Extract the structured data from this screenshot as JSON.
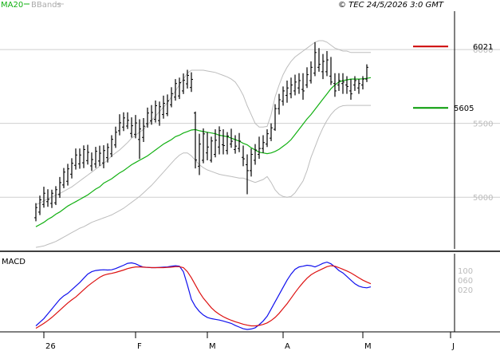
{
  "header": {
    "ma_label": "MA20",
    "bb_label": "BBands",
    "source": "© TEC 24/5/2026 3:0 GMT"
  },
  "macd_label": "MACD",
  "colors": {
    "price": "#000000",
    "ma": "#12b012",
    "bands": "#bdbdbd",
    "resistance": "#cc0000",
    "support": "#009900",
    "macd": "#1010ee",
    "signal": "#dd1111",
    "grid": "#cfcfcf",
    "axis": "#000000"
  },
  "chart_data": [
    {
      "type": "ohlc",
      "title": "",
      "y_ticks": [
        "5000",
        "5500",
        "6000"
      ],
      "ylim": [
        4650,
        6260
      ],
      "x_ticks": [
        "26",
        "F",
        "M",
        "A",
        "M",
        "J"
      ],
      "x_tick_positions": [
        2,
        25,
        43,
        62,
        82,
        104
      ],
      "x_range": [
        -9,
        105
      ],
      "levels": [
        {
          "name": "resistance",
          "value": 6021,
          "label": "6021"
        },
        {
          "name": "support",
          "value": 5605,
          "label": "5605"
        }
      ],
      "ohlc": [
        [
          4861,
          4960,
          4837,
          4930
        ],
        [
          4899,
          5011,
          4879,
          4982
        ],
        [
          4951,
          5071,
          4929,
          5027
        ],
        [
          4970,
          5054,
          4935,
          4985
        ],
        [
          4958,
          5051,
          4927,
          5027
        ],
        [
          4962,
          5075,
          4947,
          5051
        ],
        [
          5018,
          5137,
          4996,
          5099
        ],
        [
          5083,
          5198,
          5061,
          5170
        ],
        [
          5108,
          5226,
          5079,
          5192
        ],
        [
          5156,
          5264,
          5127,
          5230
        ],
        [
          5216,
          5330,
          5187,
          5286
        ],
        [
          5226,
          5330,
          5193,
          5286
        ],
        [
          5233,
          5351,
          5197,
          5323
        ],
        [
          5248,
          5355,
          5221,
          5304
        ],
        [
          5212,
          5303,
          5178,
          5255
        ],
        [
          5225,
          5341,
          5198,
          5311
        ],
        [
          5245,
          5349,
          5212,
          5298
        ],
        [
          5232,
          5352,
          5196,
          5316
        ],
        [
          5268,
          5365,
          5235,
          5337
        ],
        [
          5294,
          5420,
          5272,
          5392
        ],
        [
          5354,
          5478,
          5334,
          5440
        ],
        [
          5450,
          5562,
          5419,
          5504
        ],
        [
          5475,
          5575,
          5448,
          5537
        ],
        [
          5482,
          5575,
          5462,
          5521
        ],
        [
          5432,
          5541,
          5404,
          5484
        ],
        [
          5426,
          5557,
          5399,
          5503
        ],
        [
          5391,
          5528,
          5259,
          5462
        ],
        [
          5405,
          5536,
          5374,
          5481
        ],
        [
          5498,
          5607,
          5471,
          5570
        ],
        [
          5518,
          5624,
          5491,
          5574
        ],
        [
          5528,
          5655,
          5506,
          5620
        ],
        [
          5519,
          5648,
          5484,
          5613
        ],
        [
          5560,
          5688,
          5532,
          5636
        ],
        [
          5566,
          5696,
          5549,
          5653
        ],
        [
          5626,
          5745,
          5609,
          5702
        ],
        [
          5678,
          5800,
          5654,
          5770
        ],
        [
          5686,
          5810,
          5665,
          5776
        ],
        [
          5720,
          5838,
          5699,
          5792
        ],
        [
          5768,
          5863,
          5736,
          5825
        ],
        [
          5743,
          5846,
          5713,
          5798
        ],
        [
          5570,
          5580,
          5195,
          5252
        ],
        [
          5210,
          5430,
          5150,
          5360
        ],
        [
          5250,
          5466,
          5230,
          5429
        ],
        [
          5300,
          5440,
          5250,
          5340
        ],
        [
          5250,
          5410,
          5235,
          5381
        ],
        [
          5290,
          5460,
          5270,
          5386
        ],
        [
          5340,
          5480,
          5290,
          5451
        ],
        [
          5355,
          5460,
          5290,
          5350
        ],
        [
          5316,
          5441,
          5290,
          5414
        ],
        [
          5360,
          5464,
          5335,
          5379
        ],
        [
          5323,
          5420,
          5295,
          5346
        ],
        [
          5330,
          5435,
          5305,
          5380
        ],
        [
          5270,
          5350,
          5210,
          5260
        ],
        [
          5220,
          5290,
          5020,
          5180
        ],
        [
          5180,
          5330,
          5140,
          5290
        ],
        [
          5250,
          5360,
          5220,
          5320
        ],
        [
          5290,
          5410,
          5260,
          5330
        ],
        [
          5330,
          5420,
          5300,
          5370
        ],
        [
          5360,
          5460,
          5340,
          5430
        ],
        [
          5400,
          5500,
          5380,
          5470
        ],
        [
          5460,
          5630,
          5450,
          5600
        ],
        [
          5600,
          5700,
          5560,
          5660
        ],
        [
          5650,
          5750,
          5620,
          5720
        ],
        [
          5690,
          5790,
          5640,
          5740
        ],
        [
          5700,
          5810,
          5670,
          5760
        ],
        [
          5720,
          5830,
          5690,
          5780
        ],
        [
          5740,
          5840,
          5700,
          5790
        ],
        [
          5730,
          5840,
          5660,
          5720
        ],
        [
          5760,
          5880,
          5740,
          5830
        ],
        [
          5790,
          5920,
          5770,
          5880
        ],
        [
          5840,
          6050,
          5820,
          5980
        ],
        [
          5880,
          6010,
          5850,
          5900
        ],
        [
          5850,
          5970,
          5800,
          5920
        ],
        [
          5850,
          5990,
          5820,
          5930
        ],
        [
          5820,
          5950,
          5760,
          5780
        ],
        [
          5770,
          5840,
          5680,
          5720
        ],
        [
          5760,
          5840,
          5720,
          5790
        ],
        [
          5770,
          5840,
          5700,
          5780
        ],
        [
          5760,
          5820,
          5700,
          5750
        ],
        [
          5720,
          5800,
          5660,
          5700
        ],
        [
          5760,
          5820,
          5720,
          5790
        ],
        [
          5740,
          5800,
          5700,
          5770
        ],
        [
          5760,
          5820,
          5730,
          5800
        ],
        [
          5800,
          5900,
          5780,
          5880
        ]
      ],
      "ma20": [
        4800,
        4815,
        4830,
        4850,
        4865,
        4885,
        4900,
        4920,
        4940,
        4955,
        4970,
        4985,
        5000,
        5015,
        5035,
        5055,
        5070,
        5095,
        5110,
        5125,
        5145,
        5165,
        5180,
        5200,
        5220,
        5235,
        5250,
        5265,
        5280,
        5300,
        5320,
        5340,
        5360,
        5375,
        5390,
        5410,
        5420,
        5435,
        5445,
        5455,
        5458,
        5450,
        5445,
        5440,
        5435,
        5430,
        5420,
        5415,
        5410,
        5400,
        5390,
        5380,
        5365,
        5355,
        5335,
        5320,
        5305,
        5300,
        5295,
        5300,
        5310,
        5325,
        5345,
        5365,
        5390,
        5425,
        5460,
        5495,
        5530,
        5560,
        5595,
        5630,
        5665,
        5700,
        5735,
        5760,
        5780,
        5790,
        5795,
        5800,
        5800,
        5800,
        5802,
        5805,
        5810
      ],
      "bb_upper": [
        4950,
        4960,
        4975,
        4990,
        5000,
        5015,
        5025,
        5040,
        5055,
        5070,
        5090,
        5110,
        5130,
        5150,
        5170,
        5190,
        5210,
        5230,
        5250,
        5280,
        5300,
        5320,
        5345,
        5370,
        5400,
        5420,
        5440,
        5460,
        5490,
        5520,
        5550,
        5580,
        5610,
        5640,
        5680,
        5720,
        5760,
        5800,
        5840,
        5860,
        5860,
        5860,
        5860,
        5855,
        5850,
        5845,
        5835,
        5825,
        5815,
        5800,
        5780,
        5740,
        5690,
        5620,
        5560,
        5500,
        5475,
        5475,
        5480,
        5560,
        5680,
        5760,
        5830,
        5880,
        5920,
        5950,
        5970,
        5990,
        6010,
        6030,
        6050,
        6060,
        6060,
        6050,
        6030,
        6010,
        6000,
        5990,
        5990,
        5980,
        5980,
        5980,
        5980,
        5980,
        5980
      ],
      "bb_lower": [
        4660,
        4665,
        4670,
        4680,
        4690,
        4700,
        4715,
        4730,
        4745,
        4760,
        4775,
        4790,
        4800,
        4815,
        4830,
        4840,
        4850,
        4860,
        4870,
        4880,
        4895,
        4910,
        4925,
        4945,
        4965,
        4985,
        5005,
        5030,
        5055,
        5080,
        5110,
        5140,
        5170,
        5200,
        5230,
        5260,
        5285,
        5300,
        5300,
        5280,
        5250,
        5220,
        5200,
        5185,
        5175,
        5165,
        5155,
        5150,
        5145,
        5140,
        5135,
        5130,
        5130,
        5120,
        5110,
        5100,
        5110,
        5120,
        5140,
        5100,
        5050,
        5020,
        5005,
        5000,
        5005,
        5030,
        5070,
        5110,
        5180,
        5270,
        5340,
        5410,
        5470,
        5520,
        5560,
        5590,
        5610,
        5620,
        5622,
        5622,
        5622,
        5622,
        5622,
        5622,
        5622
      ]
    },
    {
      "type": "line",
      "title": "MACD",
      "y_ticks": [
        "100",
        "060",
        "020"
      ],
      "y_tick_values": [
        100,
        60,
        20
      ],
      "ylim": [
        -155,
        170
      ],
      "series": [
        {
          "name": "MACD",
          "values": [
            -130,
            -115,
            -100,
            -80,
            -60,
            -40,
            -20,
            -5,
            5,
            20,
            35,
            50,
            68,
            85,
            95,
            100,
            102,
            103,
            102,
            103,
            108,
            115,
            122,
            130,
            132,
            128,
            120,
            114,
            113,
            112,
            112,
            113,
            114,
            115,
            118,
            120,
            118,
            95,
            40,
            -20,
            -50,
            -70,
            -85,
            -95,
            -100,
            -103,
            -106,
            -110,
            -115,
            -120,
            -128,
            -135,
            -142,
            -145,
            -143,
            -138,
            -125,
            -110,
            -90,
            -60,
            -30,
            0,
            30,
            60,
            85,
            105,
            115,
            118,
            122,
            120,
            115,
            122,
            130,
            135,
            128,
            115,
            100,
            90,
            75,
            60,
            45,
            35,
            30,
            28,
            32
          ]
        },
        {
          "name": "Signal",
          "values": [
            -140,
            -130,
            -120,
            -108,
            -95,
            -80,
            -65,
            -50,
            -35,
            -22,
            -10,
            5,
            20,
            35,
            48,
            60,
            72,
            80,
            85,
            88,
            92,
            97,
            102,
            108,
            112,
            115,
            115,
            114,
            113,
            112,
            112,
            112,
            112,
            113,
            114,
            116,
            116,
            112,
            95,
            70,
            40,
            10,
            -15,
            -35,
            -55,
            -70,
            -82,
            -92,
            -100,
            -107,
            -113,
            -118,
            -123,
            -127,
            -130,
            -130,
            -128,
            -124,
            -118,
            -108,
            -95,
            -78,
            -58,
            -38,
            -15,
            8,
            30,
            50,
            68,
            82,
            92,
            100,
            108,
            116,
            120,
            118,
            112,
            105,
            98,
            90,
            80,
            70,
            60,
            52,
            45
          ]
        }
      ]
    }
  ]
}
